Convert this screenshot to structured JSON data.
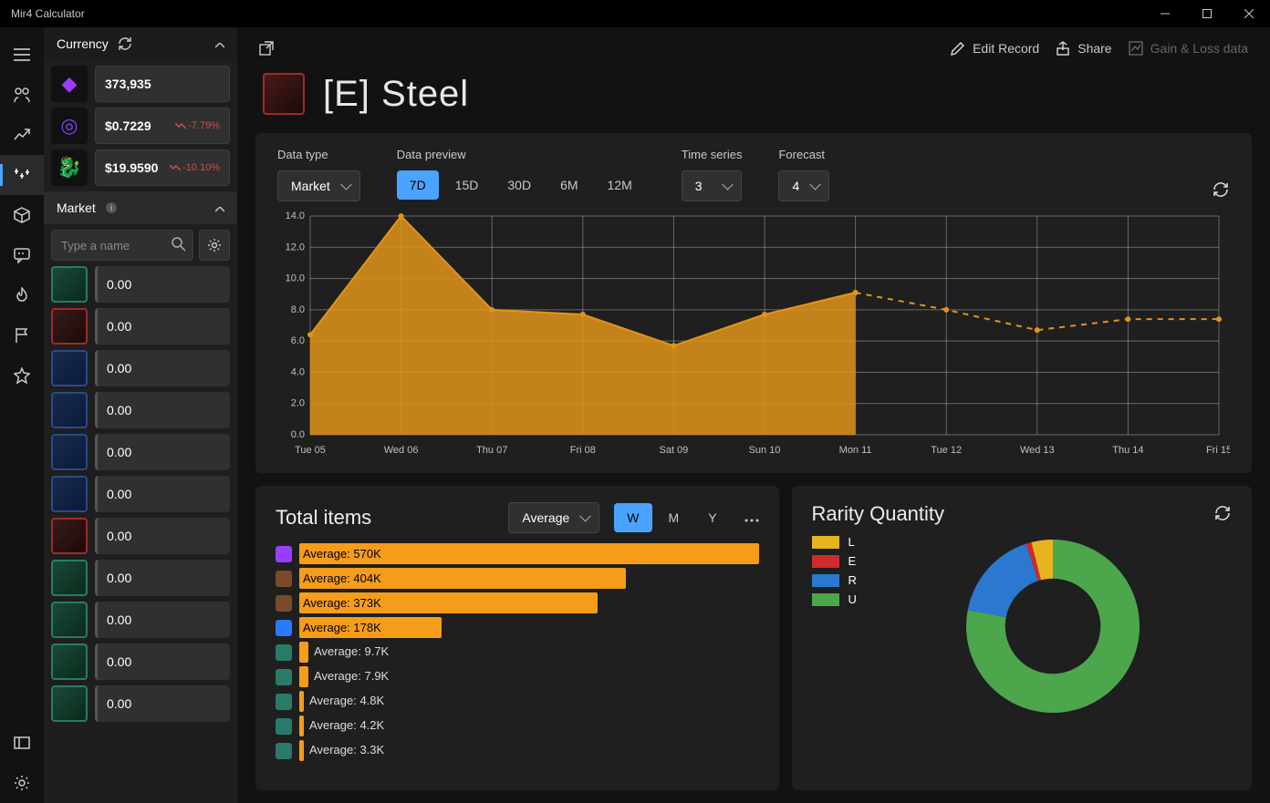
{
  "window": {
    "title": "Mir4 Calculator"
  },
  "topbar": {
    "edit": "Edit Record",
    "share": "Share",
    "gain_loss": "Gain & Loss data"
  },
  "page": {
    "title": "[E] Steel"
  },
  "sidebar": {
    "currency": {
      "label": "Currency",
      "items": [
        {
          "id": "darksteel",
          "value": "373,935",
          "delta": null,
          "icon_glyph": "◆",
          "icon_color": "#9a3dff"
        },
        {
          "id": "draco",
          "value": "$0.7229",
          "delta": "-7.79%",
          "icon_glyph": "◎",
          "icon_color": "#8a3dff"
        },
        {
          "id": "hydra",
          "value": "$19.9590",
          "delta": "-10.10%",
          "icon_glyph": "🐉",
          "icon_color": "#2a7aff"
        }
      ]
    },
    "market": {
      "label": "Market",
      "search_placeholder": "Type a name",
      "items": [
        {
          "value": "0.00",
          "tone": "teal"
        },
        {
          "value": "0.00",
          "tone": "red"
        },
        {
          "value": "0.00",
          "tone": "blue"
        },
        {
          "value": "0.00",
          "tone": "blue"
        },
        {
          "value": "0.00",
          "tone": "blue"
        },
        {
          "value": "0.00",
          "tone": "blue"
        },
        {
          "value": "0.00",
          "tone": "red"
        },
        {
          "value": "0.00",
          "tone": "teal"
        },
        {
          "value": "0.00",
          "tone": "teal"
        },
        {
          "value": "0.00",
          "tone": "teal"
        },
        {
          "value": "0.00",
          "tone": "teal"
        }
      ]
    }
  },
  "chart": {
    "controls": {
      "data_type": {
        "label": "Data type",
        "selected": "Market"
      },
      "preview": {
        "label": "Data preview",
        "options": [
          "7D",
          "15D",
          "30D",
          "6M",
          "12M"
        ],
        "selected": "7D"
      },
      "time_series": {
        "label": "Time series",
        "selected": "3"
      },
      "forecast": {
        "label": "Forecast",
        "selected": "4"
      }
    },
    "y_axis": {
      "min": 0,
      "max": 14,
      "step": 2,
      "labels_decimals": 1
    },
    "x_labels": [
      "Tue 05",
      "Wed 06",
      "Thu 07",
      "Fri 08",
      "Sat 09",
      "Sun 10",
      "Mon 11",
      "Tue 12",
      "Wed 13",
      "Thu 14",
      "Fri 15"
    ],
    "actual": {
      "points": [
        6.4,
        14.0,
        8.0,
        7.7,
        5.7,
        7.7,
        9.1
      ],
      "stroke": "#e1941a",
      "fill": "#e1941a",
      "fill_opacity": 0.85
    },
    "forecast_line": {
      "points": [
        9.1,
        8.0,
        6.7,
        7.4,
        7.4
      ],
      "start_index": 6,
      "stroke": "#e1941a",
      "dash": "6 6"
    },
    "background": "#1f1f1f",
    "grid_color": "#555555"
  },
  "total_items": {
    "title": "Total items",
    "metric": {
      "selected": "Average"
    },
    "range": {
      "options": [
        "W",
        "M",
        "Y"
      ],
      "selected": "W"
    },
    "bars": [
      {
        "label": "Average: 570K",
        "pct": 100,
        "icon_color": "#9a3dff",
        "text_inside": true
      },
      {
        "label": "Average: 404K",
        "pct": 71,
        "icon_color": "#7a4a2a",
        "text_inside": true
      },
      {
        "label": "Average: 373K",
        "pct": 65,
        "icon_color": "#7a4a2a",
        "text_inside": true
      },
      {
        "label": "Average: 178K",
        "pct": 31,
        "icon_color": "#2a7aff",
        "text_inside": true
      },
      {
        "label": "Average: 9.7K",
        "pct": 2,
        "icon_color": "#2a7a6a",
        "text_inside": false
      },
      {
        "label": "Average: 7.9K",
        "pct": 2,
        "icon_color": "#2a7a6a",
        "text_inside": false
      },
      {
        "label": "Average: 4.8K",
        "pct": 1,
        "icon_color": "#2a7a6a",
        "text_inside": false
      },
      {
        "label": "Average: 4.2K",
        "pct": 1,
        "icon_color": "#2a7a6a",
        "text_inside": false
      },
      {
        "label": "Average: 3.3K",
        "pct": 1,
        "icon_color": "#2a7a6a",
        "text_inside": false
      }
    ],
    "bar_color": "#f59c1a"
  },
  "rarity": {
    "title": "Rarity Quantity",
    "legend": [
      {
        "key": "L",
        "color": "#e6b321"
      },
      {
        "key": "E",
        "color": "#d02a2a"
      },
      {
        "key": "R",
        "color": "#2a78d0"
      },
      {
        "key": "U",
        "color": "#4ca64c"
      }
    ],
    "slices": [
      {
        "key": "U",
        "value": 78,
        "color": "#4ca64c"
      },
      {
        "key": "R",
        "value": 17,
        "color": "#2a78d0"
      },
      {
        "key": "E",
        "value": 1,
        "color": "#d02a2a"
      },
      {
        "key": "L",
        "value": 4,
        "color": "#e6b321"
      }
    ],
    "donut": {
      "inner_ratio": 0.55
    }
  }
}
